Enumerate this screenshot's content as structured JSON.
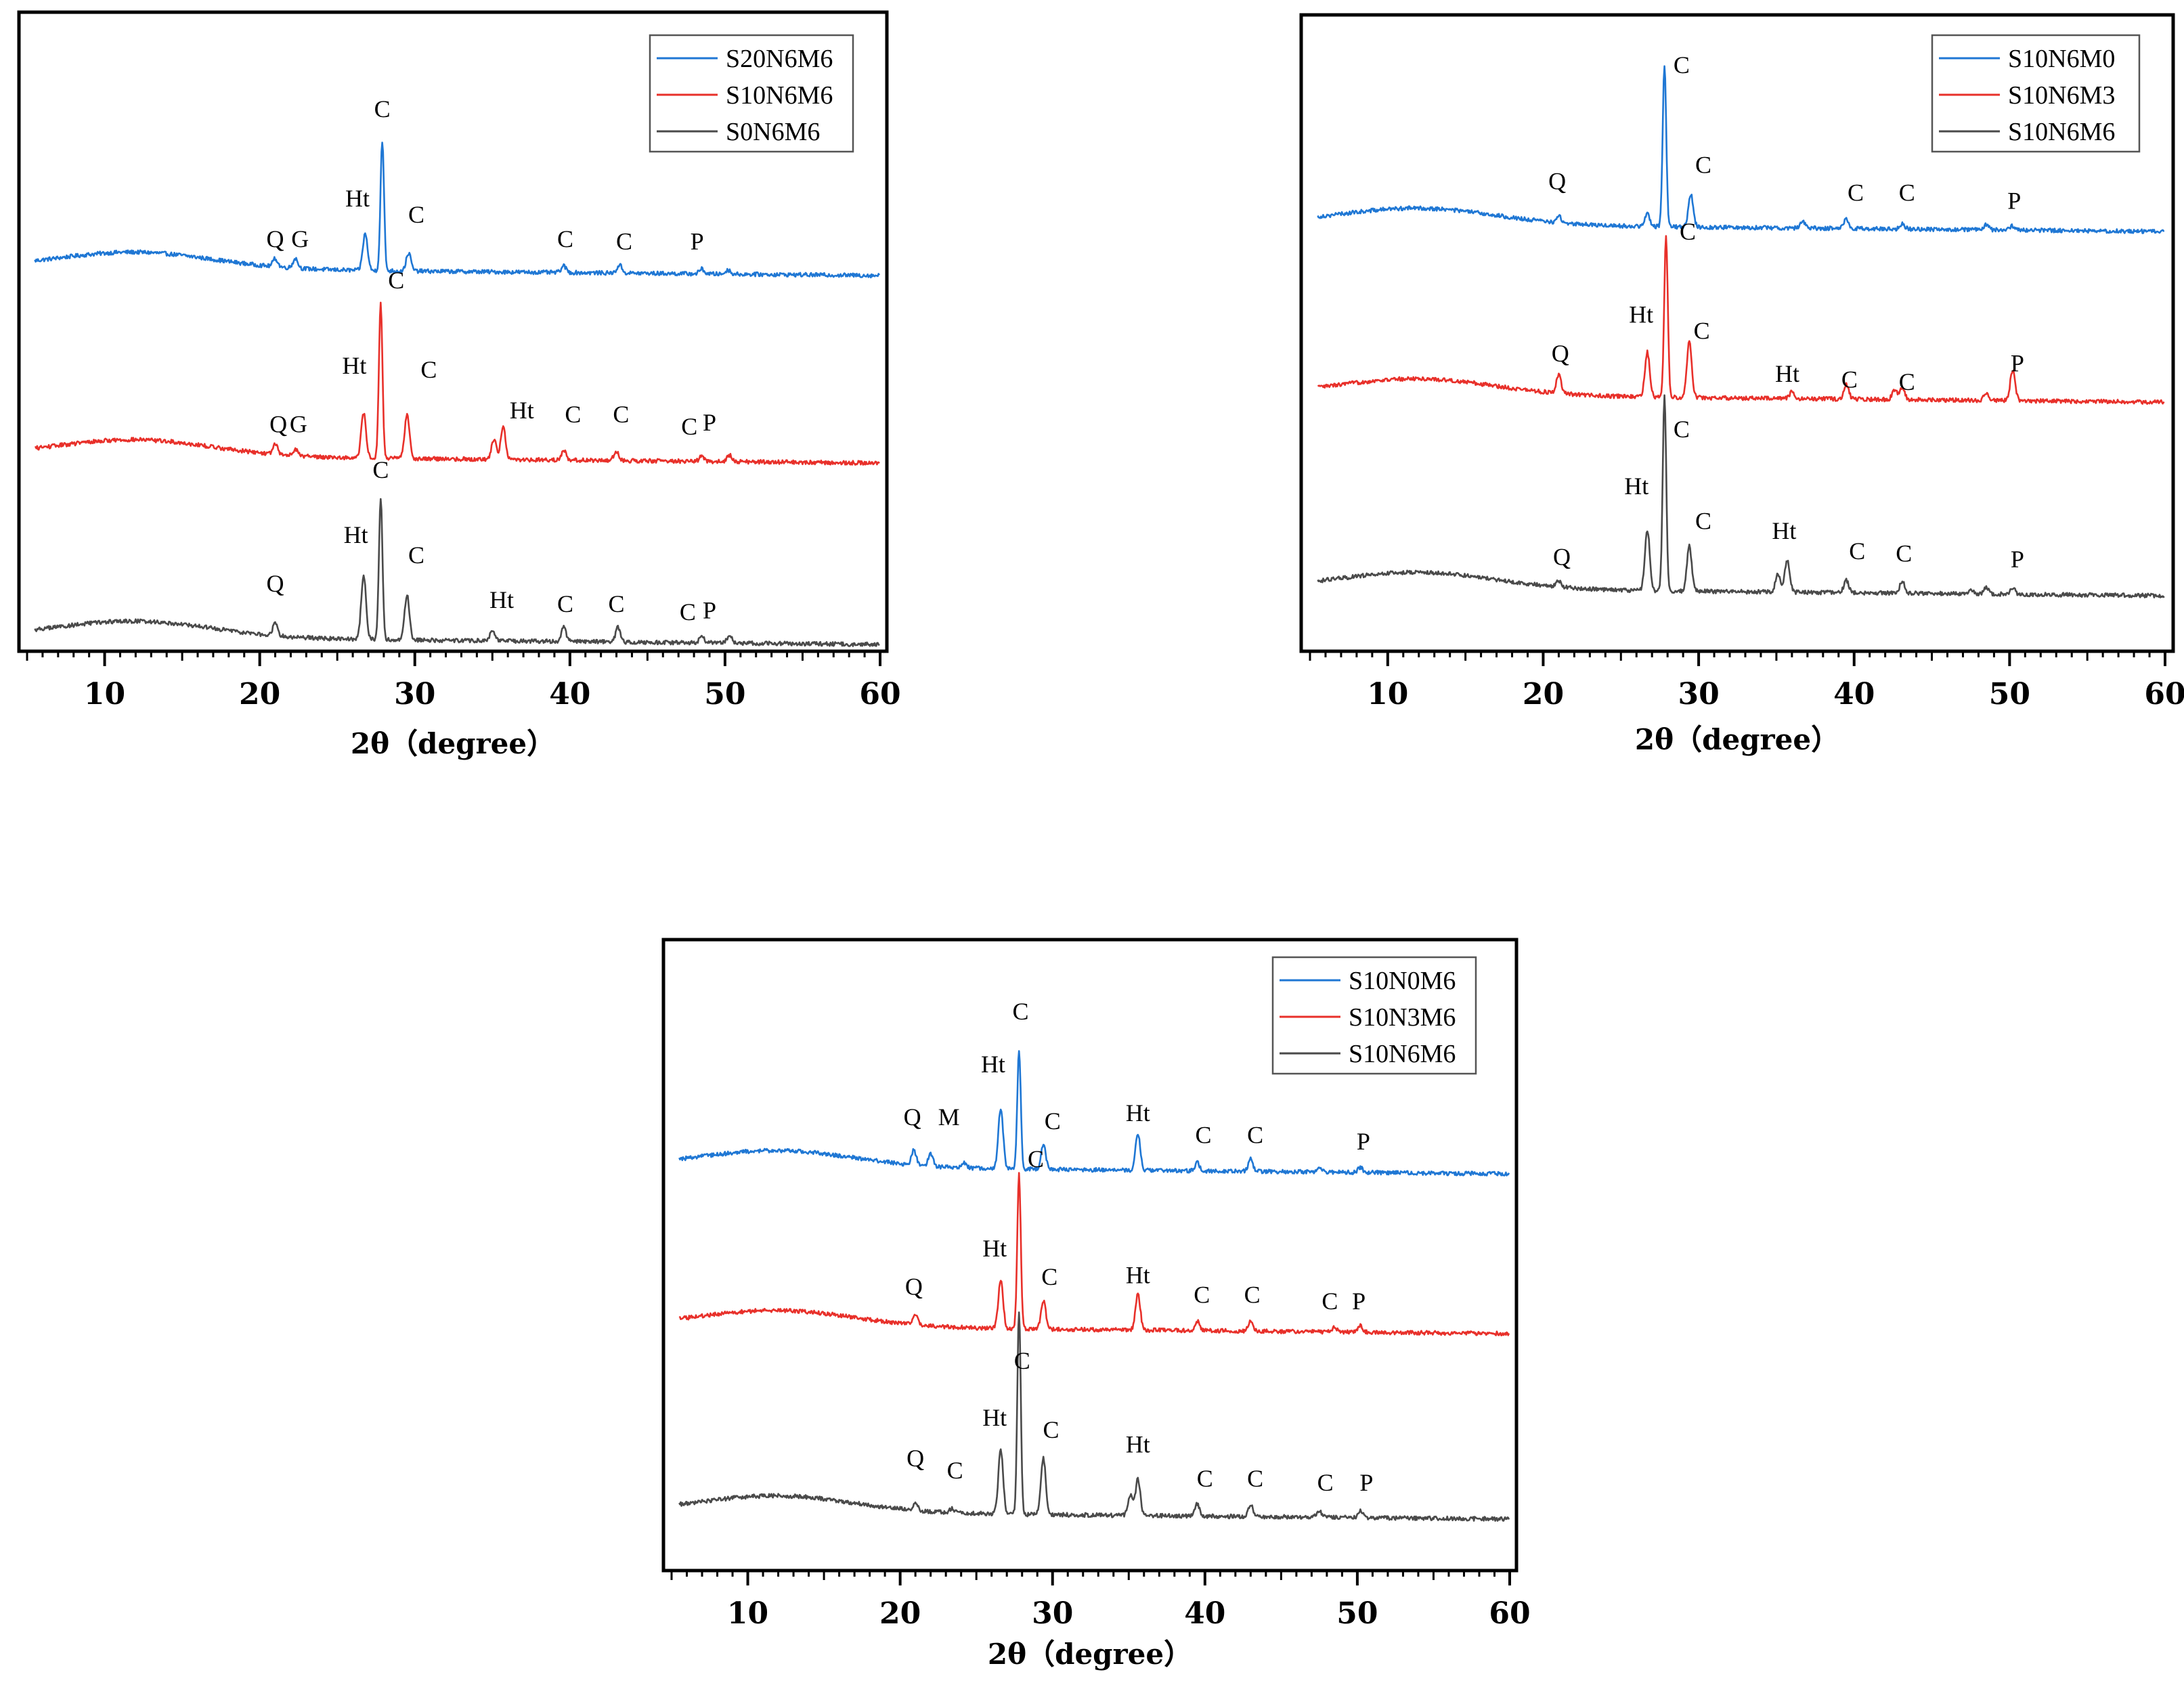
{
  "chart_data": [
    {
      "type": "line",
      "id": "panel-a",
      "xlabel": "2θ（degree）",
      "xlim": [
        5,
        60
      ],
      "xticks": [
        10,
        20,
        30,
        40,
        50,
        60
      ],
      "legend": [
        "S20N6M6",
        "S10N6M6",
        "S0N6M6"
      ],
      "series": [
        {
          "name": "S20N6M6",
          "color": "#1f77d4",
          "peaks": [
            {
              "x": 21.0,
              "h": 0.1
            },
            {
              "x": 22.3,
              "h": 0.12
            },
            {
              "x": 26.8,
              "h": 0.45
            },
            {
              "x": 27.9,
              "h": 1.6
            },
            {
              "x": 29.6,
              "h": 0.22
            },
            {
              "x": 39.6,
              "h": 0.08
            },
            {
              "x": 43.2,
              "h": 0.1
            },
            {
              "x": 48.5,
              "h": 0.06
            },
            {
              "x": 50.2,
              "h": 0.05
            }
          ],
          "labels": [
            {
              "text": "Q",
              "x": 21.0,
              "dy": 0.25
            },
            {
              "text": "G",
              "x": 22.6,
              "dy": 0.25
            },
            {
              "text": "Ht",
              "x": 26.3,
              "dy": 0.75
            },
            {
              "text": "C",
              "x": 27.9,
              "dy": 1.85
            },
            {
              "text": "C",
              "x": 30.1,
              "dy": 0.55
            },
            {
              "text": "C",
              "x": 39.7,
              "dy": 0.25
            },
            {
              "text": "C",
              "x": 43.5,
              "dy": 0.22
            },
            {
              "text": "P",
              "x": 48.2,
              "dy": 0.22
            }
          ]
        },
        {
          "name": "S10N6M6",
          "color": "#e8302a",
          "peaks": [
            {
              "x": 21.0,
              "h": 0.12
            },
            {
              "x": 22.3,
              "h": 0.08
            },
            {
              "x": 26.7,
              "h": 0.55
            },
            {
              "x": 27.8,
              "h": 1.9
            },
            {
              "x": 29.5,
              "h": 0.55
            },
            {
              "x": 35.1,
              "h": 0.25
            },
            {
              "x": 35.7,
              "h": 0.4
            },
            {
              "x": 39.6,
              "h": 0.12
            },
            {
              "x": 43.0,
              "h": 0.12
            },
            {
              "x": 48.5,
              "h": 0.06
            },
            {
              "x": 50.3,
              "h": 0.08
            }
          ],
          "labels": [
            {
              "text": "Q",
              "x": 21.2,
              "dy": 0.28
            },
            {
              "text": "G",
              "x": 22.5,
              "dy": 0.28
            },
            {
              "text": "Ht",
              "x": 26.1,
              "dy": 1.0
            },
            {
              "text": "C",
              "x": 28.8,
              "dy": 2.05
            },
            {
              "text": "C",
              "x": 30.9,
              "dy": 0.95
            },
            {
              "text": "Ht",
              "x": 36.9,
              "dy": 0.45
            },
            {
              "text": "C",
              "x": 40.2,
              "dy": 0.4
            },
            {
              "text": "C",
              "x": 43.3,
              "dy": 0.4
            },
            {
              "text": "C",
              "x": 47.7,
              "dy": 0.25
            },
            {
              "text": "P",
              "x": 49.0,
              "dy": 0.3
            }
          ]
        },
        {
          "name": "S0N6M6",
          "color": "#4a4a4a",
          "peaks": [
            {
              "x": 21.0,
              "h": 0.15
            },
            {
              "x": 26.7,
              "h": 0.8
            },
            {
              "x": 27.8,
              "h": 1.75
            },
            {
              "x": 29.5,
              "h": 0.55
            },
            {
              "x": 35.0,
              "h": 0.12
            },
            {
              "x": 39.6,
              "h": 0.18
            },
            {
              "x": 43.1,
              "h": 0.18
            },
            {
              "x": 48.5,
              "h": 0.08
            },
            {
              "x": 50.3,
              "h": 0.1
            }
          ],
          "labels": [
            {
              "text": "Q",
              "x": 21.0,
              "dy": 0.55
            },
            {
              "text": "Ht",
              "x": 26.2,
              "dy": 1.15
            },
            {
              "text": "C",
              "x": 27.8,
              "dy": 1.95
            },
            {
              "text": "C",
              "x": 30.1,
              "dy": 0.9
            },
            {
              "text": "Ht",
              "x": 35.6,
              "dy": 0.35
            },
            {
              "text": "C",
              "x": 39.7,
              "dy": 0.3
            },
            {
              "text": "C",
              "x": 43.0,
              "dy": 0.3
            },
            {
              "text": "C",
              "x": 47.6,
              "dy": 0.2
            },
            {
              "text": "P",
              "x": 49.0,
              "dy": 0.22
            }
          ]
        }
      ]
    },
    {
      "type": "line",
      "id": "panel-b",
      "xlabel": "2θ（degree）",
      "xlim": [
        5,
        60
      ],
      "xticks": [
        10,
        20,
        30,
        40,
        50,
        60
      ],
      "legend": [
        "S10N6M0",
        "S10N6M3",
        "S10N6M6"
      ],
      "series": [
        {
          "name": "S10N6M0",
          "color": "#1f77d4",
          "peaks": [
            {
              "x": 21.0,
              "h": 0.08
            },
            {
              "x": 26.7,
              "h": 0.15
            },
            {
              "x": 27.8,
              "h": 2.0
            },
            {
              "x": 29.5,
              "h": 0.4
            },
            {
              "x": 36.7,
              "h": 0.08
            },
            {
              "x": 39.5,
              "h": 0.12
            },
            {
              "x": 43.1,
              "h": 0.06
            },
            {
              "x": 48.5,
              "h": 0.06
            },
            {
              "x": 50.2,
              "h": 0.05
            }
          ],
          "labels": [
            {
              "text": "Q",
              "x": 20.9,
              "dy": 0.42
            },
            {
              "text": "C",
              "x": 28.9,
              "dy": 1.85
            },
            {
              "text": "C",
              "x": 30.3,
              "dy": 0.62
            },
            {
              "text": "C",
              "x": 40.1,
              "dy": 0.28
            },
            {
              "text": "C",
              "x": 43.4,
              "dy": 0.28
            },
            {
              "text": "P",
              "x": 50.3,
              "dy": 0.18
            }
          ]
        },
        {
          "name": "S10N6M3",
          "color": "#e8302a",
          "peaks": [
            {
              "x": 21.0,
              "h": 0.22
            },
            {
              "x": 26.7,
              "h": 0.55
            },
            {
              "x": 27.9,
              "h": 2.0
            },
            {
              "x": 29.4,
              "h": 0.7
            },
            {
              "x": 36.0,
              "h": 0.08
            },
            {
              "x": 39.5,
              "h": 0.18
            },
            {
              "x": 42.6,
              "h": 0.12
            },
            {
              "x": 43.1,
              "h": 0.15
            },
            {
              "x": 48.5,
              "h": 0.1
            },
            {
              "x": 50.2,
              "h": 0.38
            }
          ],
          "labels": [
            {
              "text": "Q",
              "x": 21.1,
              "dy": 0.4
            },
            {
              "text": "Ht",
              "x": 26.3,
              "dy": 0.88
            },
            {
              "text": "C",
              "x": 29.3,
              "dy": 1.9
            },
            {
              "text": "C",
              "x": 30.2,
              "dy": 0.68
            },
            {
              "text": "Ht",
              "x": 35.7,
              "dy": 0.15
            },
            {
              "text": "C",
              "x": 39.7,
              "dy": 0.08
            },
            {
              "text": "C",
              "x": 43.4,
              "dy": 0.05
            },
            {
              "text": "P",
              "x": 50.5,
              "dy": 0.28
            }
          ]
        },
        {
          "name": "S10N6M6",
          "color": "#4a4a4a",
          "peaks": [
            {
              "x": 21.0,
              "h": 0.08
            },
            {
              "x": 26.7,
              "h": 0.75
            },
            {
              "x": 27.8,
              "h": 2.4
            },
            {
              "x": 29.4,
              "h": 0.55
            },
            {
              "x": 35.1,
              "h": 0.22
            },
            {
              "x": 35.7,
              "h": 0.4
            },
            {
              "x": 39.5,
              "h": 0.15
            },
            {
              "x": 43.1,
              "h": 0.15
            },
            {
              "x": 47.5,
              "h": 0.06
            },
            {
              "x": 48.5,
              "h": 0.08
            },
            {
              "x": 50.2,
              "h": 0.08
            }
          ],
          "labels": [
            {
              "text": "Q",
              "x": 21.2,
              "dy": 0.28
            },
            {
              "text": "Ht",
              "x": 26.0,
              "dy": 1.15
            },
            {
              "text": "C",
              "x": 28.9,
              "dy": 1.85
            },
            {
              "text": "C",
              "x": 30.3,
              "dy": 0.72
            },
            {
              "text": "Ht",
              "x": 35.5,
              "dy": 0.6
            },
            {
              "text": "C",
              "x": 40.2,
              "dy": 0.35
            },
            {
              "text": "C",
              "x": 43.2,
              "dy": 0.32
            },
            {
              "text": "P",
              "x": 50.5,
              "dy": 0.25
            }
          ]
        }
      ]
    },
    {
      "type": "line",
      "id": "panel-c",
      "xlabel": "2θ（degree）",
      "xlim": [
        5,
        60
      ],
      "xticks": [
        10,
        20,
        30,
        40,
        50,
        60
      ],
      "legend": [
        "S10N0M6",
        "S10N3M6",
        "S10N6M6"
      ],
      "series": [
        {
          "name": "S10N0M6",
          "color": "#1f77d4",
          "peaks": [
            {
              "x": 20.9,
              "h": 0.18
            },
            {
              "x": 22.0,
              "h": 0.15
            },
            {
              "x": 24.2,
              "h": 0.06
            },
            {
              "x": 26.6,
              "h": 0.75
            },
            {
              "x": 27.8,
              "h": 1.45
            },
            {
              "x": 29.4,
              "h": 0.3
            },
            {
              "x": 35.6,
              "h": 0.45
            },
            {
              "x": 39.5,
              "h": 0.1
            },
            {
              "x": 43.0,
              "h": 0.15
            },
            {
              "x": 47.5,
              "h": 0.05
            },
            {
              "x": 50.2,
              "h": 0.06
            }
          ],
          "labels": [
            {
              "text": "Q",
              "x": 20.8,
              "dy": 0.5
            },
            {
              "text": "M",
              "x": 23.2,
              "dy": 0.5
            },
            {
              "text": "Ht",
              "x": 26.1,
              "dy": 1.15
            },
            {
              "text": "C",
              "x": 27.9,
              "dy": 1.8
            },
            {
              "text": "C",
              "x": 30.0,
              "dy": 0.45
            },
            {
              "text": "Ht",
              "x": 35.6,
              "dy": 0.55
            },
            {
              "text": "C",
              "x": 39.9,
              "dy": 0.28
            },
            {
              "text": "C",
              "x": 43.3,
              "dy": 0.28
            },
            {
              "text": "P",
              "x": 50.4,
              "dy": 0.2
            }
          ]
        },
        {
          "name": "S10N3M6",
          "color": "#e8302a",
          "peaks": [
            {
              "x": 21.0,
              "h": 0.12
            },
            {
              "x": 26.6,
              "h": 0.6
            },
            {
              "x": 27.8,
              "h": 1.9
            },
            {
              "x": 29.4,
              "h": 0.35
            },
            {
              "x": 35.6,
              "h": 0.45
            },
            {
              "x": 39.5,
              "h": 0.12
            },
            {
              "x": 43.0,
              "h": 0.12
            },
            {
              "x": 48.5,
              "h": 0.06
            },
            {
              "x": 50.2,
              "h": 0.08
            }
          ],
          "labels": [
            {
              "text": "Q",
              "x": 20.9,
              "dy": 0.38
            },
            {
              "text": "Ht",
              "x": 26.2,
              "dy": 0.85
            },
            {
              "text": "C",
              "x": 28.9,
              "dy": 1.95
            },
            {
              "text": "C",
              "x": 29.8,
              "dy": 0.5
            },
            {
              "text": "Ht",
              "x": 35.6,
              "dy": 0.52
            },
            {
              "text": "C",
              "x": 39.8,
              "dy": 0.28
            },
            {
              "text": "C",
              "x": 43.1,
              "dy": 0.28
            },
            {
              "text": "C",
              "x": 48.2,
              "dy": 0.2
            },
            {
              "text": "P",
              "x": 50.1,
              "dy": 0.2
            }
          ]
        },
        {
          "name": "S10N6M6",
          "color": "#4a4a4a",
          "peaks": [
            {
              "x": 21.0,
              "h": 0.08
            },
            {
              "x": 23.4,
              "h": 0.05
            },
            {
              "x": 26.6,
              "h": 0.8
            },
            {
              "x": 27.8,
              "h": 2.5
            },
            {
              "x": 29.4,
              "h": 0.7
            },
            {
              "x": 35.1,
              "h": 0.25
            },
            {
              "x": 35.6,
              "h": 0.45
            },
            {
              "x": 39.5,
              "h": 0.15
            },
            {
              "x": 43.0,
              "h": 0.15
            },
            {
              "x": 47.5,
              "h": 0.08
            },
            {
              "x": 50.2,
              "h": 0.08
            }
          ],
          "labels": [
            {
              "text": "Q",
              "x": 21.0,
              "dy": 0.55
            },
            {
              "text": "C",
              "x": 23.6,
              "dy": 0.4
            },
            {
              "text": "Ht",
              "x": 26.2,
              "dy": 1.05
            },
            {
              "text": "C",
              "x": 28.0,
              "dy": 1.75
            },
            {
              "text": "C",
              "x": 29.9,
              "dy": 0.9
            },
            {
              "text": "Ht",
              "x": 35.6,
              "dy": 0.72
            },
            {
              "text": "C",
              "x": 40.0,
              "dy": 0.3
            },
            {
              "text": "C",
              "x": 43.3,
              "dy": 0.3
            },
            {
              "text": "C",
              "x": 47.9,
              "dy": 0.25
            },
            {
              "text": "P",
              "x": 50.6,
              "dy": 0.25
            }
          ]
        }
      ]
    }
  ]
}
